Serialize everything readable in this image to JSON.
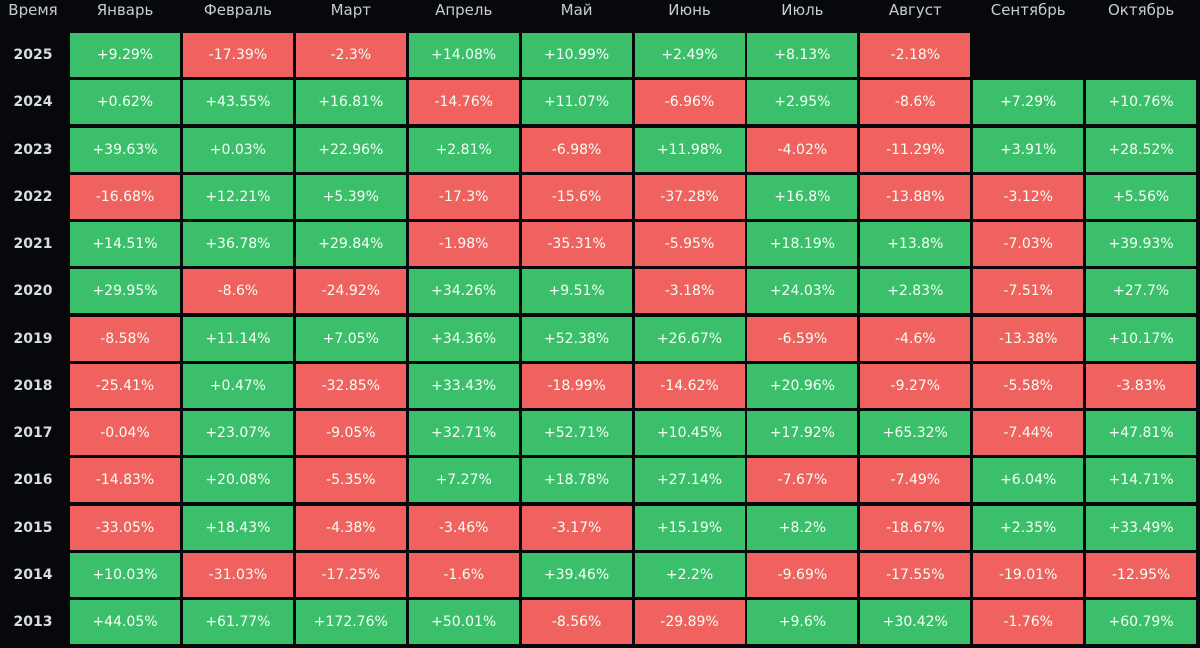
{
  "colors": {
    "background": "#07080c",
    "positive": "#3bbf6b",
    "negative": "#f0625f"
  },
  "chart_data": {
    "type": "heatmap",
    "corner_label": "Время",
    "columns": [
      "Январь",
      "Февраль",
      "Март",
      "Апрель",
      "Май",
      "Июнь",
      "Июль",
      "Август",
      "Сентябрь",
      "Октябрь"
    ],
    "rows": [
      {
        "year": "2025",
        "values": [
          "+9.29%",
          "-17.39%",
          "-2.3%",
          "+14.08%",
          "+10.99%",
          "+2.49%",
          "+8.13%",
          "-2.18%",
          "",
          ""
        ]
      },
      {
        "year": "2024",
        "values": [
          "+0.62%",
          "+43.55%",
          "+16.81%",
          "-14.76%",
          "+11.07%",
          "-6.96%",
          "+2.95%",
          "-8.6%",
          "+7.29%",
          "+10.76%"
        ]
      },
      {
        "year": "2023",
        "values": [
          "+39.63%",
          "+0.03%",
          "+22.96%",
          "+2.81%",
          "-6.98%",
          "+11.98%",
          "-4.02%",
          "-11.29%",
          "+3.91%",
          "+28.52%"
        ]
      },
      {
        "year": "2022",
        "values": [
          "-16.68%",
          "+12.21%",
          "+5.39%",
          "-17.3%",
          "-15.6%",
          "-37.28%",
          "+16.8%",
          "-13.88%",
          "-3.12%",
          "+5.56%"
        ]
      },
      {
        "year": "2021",
        "values": [
          "+14.51%",
          "+36.78%",
          "+29.84%",
          "-1.98%",
          "-35.31%",
          "-5.95%",
          "+18.19%",
          "+13.8%",
          "-7.03%",
          "+39.93%"
        ]
      },
      {
        "year": "2020",
        "values": [
          "+29.95%",
          "-8.6%",
          "-24.92%",
          "+34.26%",
          "+9.51%",
          "-3.18%",
          "+24.03%",
          "+2.83%",
          "-7.51%",
          "+27.7%"
        ]
      },
      {
        "year": "2019",
        "values": [
          "-8.58%",
          "+11.14%",
          "+7.05%",
          "+34.36%",
          "+52.38%",
          "+26.67%",
          "-6.59%",
          "-4.6%",
          "-13.38%",
          "+10.17%"
        ]
      },
      {
        "year": "2018",
        "values": [
          "-25.41%",
          "+0.47%",
          "-32.85%",
          "+33.43%",
          "-18.99%",
          "-14.62%",
          "+20.96%",
          "-9.27%",
          "-5.58%",
          "-3.83%"
        ]
      },
      {
        "year": "2017",
        "values": [
          "-0.04%",
          "+23.07%",
          "-9.05%",
          "+32.71%",
          "+52.71%",
          "+10.45%",
          "+17.92%",
          "+65.32%",
          "-7.44%",
          "+47.81%"
        ]
      },
      {
        "year": "2016",
        "values": [
          "-14.83%",
          "+20.08%",
          "-5.35%",
          "+7.27%",
          "+18.78%",
          "+27.14%",
          "-7.67%",
          "-7.49%",
          "+6.04%",
          "+14.71%"
        ]
      },
      {
        "year": "2015",
        "values": [
          "-33.05%",
          "+18.43%",
          "-4.38%",
          "-3.46%",
          "-3.17%",
          "+15.19%",
          "+8.2%",
          "-18.67%",
          "+2.35%",
          "+33.49%"
        ]
      },
      {
        "year": "2014",
        "values": [
          "+10.03%",
          "-31.03%",
          "-17.25%",
          "-1.6%",
          "+39.46%",
          "+2.2%",
          "-9.69%",
          "-17.55%",
          "-19.01%",
          "-12.95%"
        ]
      },
      {
        "year": "2013",
        "values": [
          "+44.05%",
          "+61.77%",
          "+172.76%",
          "+50.01%",
          "-8.56%",
          "-29.89%",
          "+9.6%",
          "+30.42%",
          "-1.76%",
          "+60.79%"
        ]
      }
    ]
  }
}
